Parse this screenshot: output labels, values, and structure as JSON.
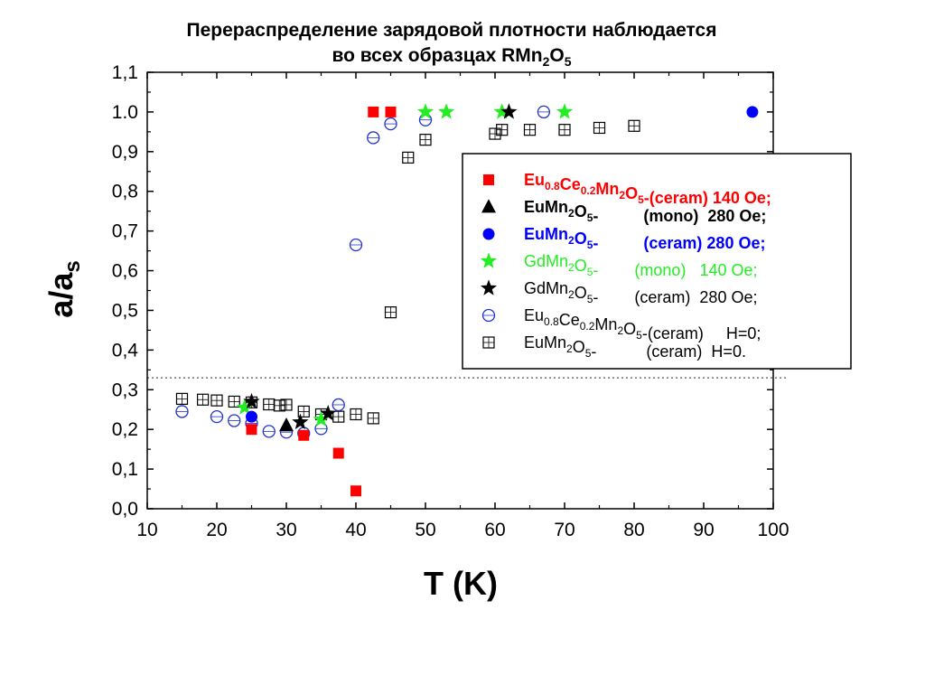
{
  "title": {
    "line1": "Перераспределение зарядовой плотности наблюдается",
    "line2_prefix": "во всех образцах RMn",
    "line2_sub1": "2",
    "line2_mid": "O",
    "line2_sub2": "5"
  },
  "chart_data": {
    "type": "scatter",
    "xlabel": "T (K)",
    "ylabel_main": "a/a",
    "ylabel_sub": "s",
    "xlim": [
      10,
      100
    ],
    "ylim": [
      0,
      1.1
    ],
    "x_ticks": [
      "10",
      "20",
      "30",
      "40",
      "50",
      "60",
      "70",
      "80",
      "90",
      "100"
    ],
    "y_ticks": [
      "0,0",
      "0,1",
      "0,2",
      "0,3",
      "0,4",
      "0,5",
      "0,6",
      "0,7",
      "0,8",
      "0,9",
      "1.0",
      "1,1"
    ],
    "reference_line_y": 0.33,
    "legend_position": "right",
    "series": [
      {
        "name": "Eu0.8Ce0.2Mn2O5-(ceram) 140 Oe;",
        "legend_runs": [
          [
            "Eu",
            ""
          ],
          [
            "0.8",
            "sub"
          ],
          [
            "Ce",
            ""
          ],
          [
            "0.2",
            "sub"
          ],
          [
            "Mn",
            ""
          ],
          [
            "2",
            "sub"
          ],
          [
            "O",
            ""
          ],
          [
            "5",
            "sub"
          ],
          [
            "-(ceram) 140 Oe;",
            ""
          ]
        ],
        "marker": "square",
        "color": "#ff0000",
        "bold": true,
        "x": [
          42.5,
          45,
          25,
          32.5,
          37.5,
          40
        ],
        "y": [
          1.0,
          1.0,
          0.2,
          0.185,
          0.14,
          0.045
        ]
      },
      {
        "name": "EuMn2O5- (mono) 280 Oe;",
        "legend_runs": [
          [
            "EuMn",
            ""
          ],
          [
            "2",
            "sub"
          ],
          [
            "O",
            ""
          ],
          [
            "5",
            "sub"
          ],
          [
            "-          (mono)  280 Oe;",
            ""
          ]
        ],
        "marker": "triangle",
        "color": "#000000",
        "bold": true,
        "x": [
          30
        ],
        "y": [
          0.21
        ]
      },
      {
        "name": "EuMn2O5- (ceram) 280 Oe;",
        "legend_runs": [
          [
            "EuMn",
            ""
          ],
          [
            "2",
            "sub"
          ],
          [
            "O",
            ""
          ],
          [
            "5",
            "sub"
          ],
          [
            "-          (ceram) 280 Oe;",
            ""
          ]
        ],
        "marker": "circle",
        "color": "#0000ff",
        "bold": true,
        "x": [
          97,
          25
        ],
        "y": [
          1.0,
          0.232
        ]
      },
      {
        "name": "GdMn2O5- (mono) 140 Oe;",
        "legend_runs": [
          [
            "GdMn",
            ""
          ],
          [
            "2",
            "sub"
          ],
          [
            "O",
            ""
          ],
          [
            "5",
            "sub"
          ],
          [
            "-        (mono)   140 Oe;",
            ""
          ]
        ],
        "marker": "star",
        "color": "#22ee22",
        "bold": false,
        "x": [
          24,
          35,
          50,
          53,
          61,
          70
        ],
        "y": [
          0.255,
          0.225,
          1.0,
          1.0,
          1.0,
          1.0
        ]
      },
      {
        "name": "GdMn2O5- (ceram) 280 Oe;",
        "legend_runs": [
          [
            "GdMn",
            ""
          ],
          [
            "2",
            "sub"
          ],
          [
            "O",
            ""
          ],
          [
            "5",
            "sub"
          ],
          [
            "-        (ceram)  280 Oe;",
            ""
          ]
        ],
        "marker": "star",
        "color": "#000000",
        "bold": false,
        "x": [
          25,
          32,
          36,
          62
        ],
        "y": [
          0.27,
          0.218,
          0.24,
          1.0
        ]
      },
      {
        "name": "Eu0.8Ce0.2Mn2O5-(ceram) H=0;",
        "legend_runs": [
          [
            "Eu",
            ""
          ],
          [
            "0.8",
            "sub"
          ],
          [
            "Ce",
            ""
          ],
          [
            "0.2",
            "sub"
          ],
          [
            "Mn",
            ""
          ],
          [
            "2",
            "sub"
          ],
          [
            "O",
            ""
          ],
          [
            "5",
            "sub"
          ],
          [
            "-(ceram)     H=0;",
            ""
          ]
        ],
        "marker": "circle-open",
        "color": "#2233cc",
        "bold": false,
        "x": [
          15,
          20,
          22.5,
          25,
          27.5,
          30,
          32.5,
          35,
          37.5,
          40,
          42.5,
          45,
          50,
          67
        ],
        "y": [
          0.245,
          0.232,
          0.222,
          0.215,
          0.195,
          0.193,
          0.19,
          0.202,
          0.262,
          0.665,
          0.935,
          0.97,
          0.98,
          1.0
        ]
      },
      {
        "name": "EuMn2O5- (ceram) H=0.",
        "legend_runs": [
          [
            "EuMn",
            ""
          ],
          [
            "2",
            "sub"
          ],
          [
            "O",
            ""
          ],
          [
            "5",
            "sub"
          ],
          [
            "-           (ceram)  H=0.",
            ""
          ]
        ],
        "marker": "square-open",
        "color": "#000000",
        "bold": false,
        "x": [
          15,
          18,
          20,
          22.5,
          25,
          27.5,
          29,
          30,
          32.5,
          35,
          37.5,
          40,
          42.5,
          45,
          47.5,
          50,
          60,
          61,
          65,
          70,
          75,
          80
        ],
        "y": [
          0.277,
          0.275,
          0.273,
          0.27,
          0.268,
          0.263,
          0.26,
          0.262,
          0.245,
          0.238,
          0.232,
          0.238,
          0.228,
          0.495,
          0.885,
          0.93,
          0.945,
          0.955,
          0.955,
          0.955,
          0.96,
          0.965
        ]
      }
    ]
  }
}
